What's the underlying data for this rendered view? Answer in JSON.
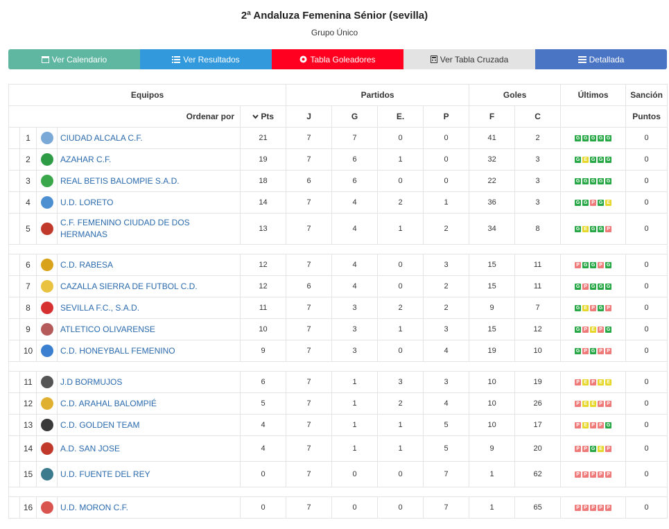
{
  "header": {
    "title": "2ª Andaluza Femenina Sénior (sevilla)",
    "subtitle": "Grupo Único"
  },
  "buttons": [
    {
      "label": "Ver Calendario",
      "icon": "calendar-icon",
      "color": "#5fb7a2"
    },
    {
      "label": "Ver Resultados",
      "icon": "list-icon",
      "color": "#3399dd"
    },
    {
      "label": "Tabla Goleadores",
      "icon": "soccer-ball-icon",
      "color": "#ff0020"
    },
    {
      "label": "Ver Tabla Cruzada",
      "icon": "calculator-icon",
      "color": "#e3e3e3"
    },
    {
      "label": "Detallada",
      "icon": "detail-list-icon",
      "color": "#4a74c4"
    }
  ],
  "table": {
    "group_headers": {
      "teams": "Equipos",
      "matches": "Partidos",
      "goals": "Goles",
      "last": "Últimos",
      "sanction": "Sanción"
    },
    "sort_label": "Ordenar por",
    "columns": {
      "pts": "Pts",
      "j": "J",
      "g": "G",
      "e": "E.",
      "p": "P",
      "f": "F",
      "c": "C",
      "points": "Puntos"
    },
    "rows": [
      {
        "pos": "1",
        "name": "CIUDAD ALCALA C.F.",
        "pts": "21",
        "j": "7",
        "g": "7",
        "e": "0",
        "p": "0",
        "f": "41",
        "c": "2",
        "last": "GGGGG",
        "sanction": "0",
        "crest": "#7aa9d8"
      },
      {
        "pos": "2",
        "name": "AZAHAR C.F.",
        "pts": "19",
        "j": "7",
        "g": "6",
        "e": "1",
        "p": "0",
        "f": "32",
        "c": "3",
        "last": "GEGGG",
        "sanction": "0",
        "crest": "#2e9b45"
      },
      {
        "pos": "3",
        "name": "REAL BETIS BALOMPIE S.A.D.",
        "pts": "18",
        "j": "6",
        "g": "6",
        "e": "0",
        "p": "0",
        "f": "22",
        "c": "3",
        "last": "GGGGG",
        "sanction": "0",
        "crest": "#3aa84a"
      },
      {
        "pos": "4",
        "name": "U.D. LORETO",
        "pts": "14",
        "j": "7",
        "g": "4",
        "e": "2",
        "p": "1",
        "f": "36",
        "c": "3",
        "last": "GGPGE",
        "sanction": "0",
        "crest": "#4d8fd1"
      },
      {
        "pos": "5",
        "name": "C.F. FEMENINO CIUDAD DE DOS HERMANAS",
        "pts": "13",
        "j": "7",
        "g": "4",
        "e": "1",
        "p": "2",
        "f": "34",
        "c": "8",
        "last": "GEGGP",
        "sanction": "0",
        "crest": "#c0392b"
      },
      {
        "pos": "6",
        "name": "C.D. RABESA",
        "pts": "12",
        "j": "7",
        "g": "4",
        "e": "0",
        "p": "3",
        "f": "15",
        "c": "11",
        "last": "PGGPG",
        "sanction": "0",
        "crest": "#d9a21b"
      },
      {
        "pos": "7",
        "name": "CAZALLA SIERRA DE FUTBOL C.D.",
        "pts": "12",
        "j": "6",
        "g": "4",
        "e": "0",
        "p": "2",
        "f": "15",
        "c": "11",
        "last": "GPGGG",
        "sanction": "0",
        "crest": "#e8c240"
      },
      {
        "pos": "8",
        "name": "SEVILLA F.C., S.A.D.",
        "pts": "11",
        "j": "7",
        "g": "3",
        "e": "2",
        "p": "2",
        "f": "9",
        "c": "7",
        "last": "GEPGP",
        "sanction": "0",
        "crest": "#d63030"
      },
      {
        "pos": "9",
        "name": "ATLETICO OLIVARENSE",
        "pts": "10",
        "j": "7",
        "g": "3",
        "e": "1",
        "p": "3",
        "f": "15",
        "c": "12",
        "last": "GPEPG",
        "sanction": "0",
        "crest": "#b55a5a"
      },
      {
        "pos": "10",
        "name": "C.D. HONEYBALL FEMENINO",
        "pts": "9",
        "j": "7",
        "g": "3",
        "e": "0",
        "p": "4",
        "f": "19",
        "c": "10",
        "last": "GPGPP",
        "sanction": "0",
        "crest": "#3b7fd0"
      },
      {
        "pos": "11",
        "name": "J.D BORMUJOS",
        "pts": "6",
        "j": "7",
        "g": "1",
        "e": "3",
        "p": "3",
        "f": "10",
        "c": "19",
        "last": "PEPEE",
        "sanction": "0",
        "crest": "#555555"
      },
      {
        "pos": "12",
        "name": "C.D. ARAHAL BALOMPIÉ",
        "pts": "5",
        "j": "7",
        "g": "1",
        "e": "2",
        "p": "4",
        "f": "10",
        "c": "26",
        "last": "PEEPP",
        "sanction": "0",
        "crest": "#e0b030"
      },
      {
        "pos": "13",
        "name": "C.D. GOLDEN TEAM",
        "pts": "4",
        "j": "7",
        "g": "1",
        "e": "1",
        "p": "5",
        "f": "10",
        "c": "17",
        "last": "PEPPG",
        "sanction": "0",
        "crest": "#3a3a3a"
      },
      {
        "pos": "14",
        "name": "A.D. SAN JOSE",
        "pts": "4",
        "j": "7",
        "g": "1",
        "e": "1",
        "p": "5",
        "f": "9",
        "c": "20",
        "last": "PPGEP",
        "sanction": "0",
        "crest": "#c0392b"
      },
      {
        "pos": "15",
        "name": "U.D. FUENTE DEL REY",
        "pts": "0",
        "j": "7",
        "g": "0",
        "e": "0",
        "p": "7",
        "f": "1",
        "c": "62",
        "last": "PPPPP",
        "sanction": "0",
        "crest": "#3c7a8e"
      },
      {
        "pos": "16",
        "name": "U.D. MORON C.F.",
        "pts": "0",
        "j": "7",
        "g": "0",
        "e": "0",
        "p": "7",
        "f": "1",
        "c": "65",
        "last": "PPPPP",
        "sanction": "0",
        "crest": "#d9534f"
      }
    ]
  }
}
